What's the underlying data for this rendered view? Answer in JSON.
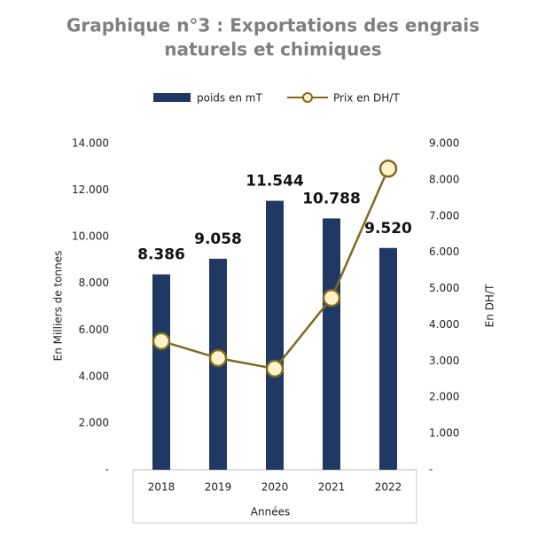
{
  "chart_data": {
    "type": "bar",
    "title": "Graphique n°3 : Exportations des engrais",
    "subtitle": "naturels et chimiques",
    "categories": [
      "2018",
      "2019",
      "2020",
      "2021",
      "2022"
    ],
    "x_label": "Années",
    "y_label": "En Milliers de tonnes",
    "y2_label": "En DH/T",
    "series": [
      {
        "name": "poids en mT",
        "type": "bar",
        "color": "#1f3864",
        "values": [
          8386,
          9058,
          11544,
          10788,
          9520
        ],
        "value_labels": [
          "8.386",
          "9.058",
          "11.544",
          "10.788",
          "9.520"
        ]
      },
      {
        "name": "Prix en DH/T",
        "type": "line",
        "axis": "y2",
        "color": "#7f6a1e",
        "values": [
          3550,
          3080,
          2790,
          4740,
          8310
        ]
      }
    ],
    "ylim": [
      0,
      14000
    ],
    "yticks": [
      {
        "value": 0,
        "label": "-"
      },
      {
        "value": 2000,
        "label": "2.000"
      },
      {
        "value": 4000,
        "label": "4.000"
      },
      {
        "value": 6000,
        "label": "6.000"
      },
      {
        "value": 8000,
        "label": "8.000"
      },
      {
        "value": 10000,
        "label": "10.000"
      },
      {
        "value": 12000,
        "label": "12.000"
      },
      {
        "value": 14000,
        "label": "14.000"
      }
    ],
    "y2lim": [
      0,
      9000
    ],
    "y2ticks": [
      {
        "value": 0,
        "label": "-"
      },
      {
        "value": 1000,
        "label": "1.000"
      },
      {
        "value": 2000,
        "label": "2.000"
      },
      {
        "value": 3000,
        "label": "3.000"
      },
      {
        "value": 4000,
        "label": "4.000"
      },
      {
        "value": 5000,
        "label": "5.000"
      },
      {
        "value": 6000,
        "label": "6.000"
      },
      {
        "value": 7000,
        "label": "7.000"
      },
      {
        "value": 8000,
        "label": "8.000"
      },
      {
        "value": 9000,
        "label": "9.000"
      }
    ],
    "legend": "top"
  }
}
